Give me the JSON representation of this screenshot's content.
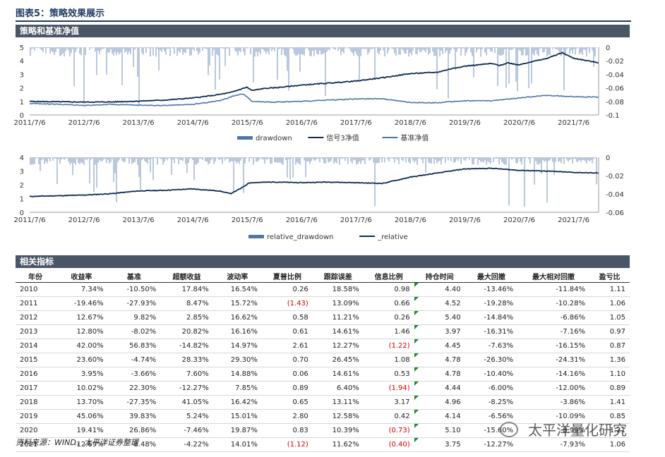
{
  "figure_title": "图表5：策略效果展示",
  "band_chart": "策略和基准净值",
  "band_table": "相关指标",
  "source": "资料来源：WIND，太平洋证券整理",
  "watermark": "太平洋量化研究",
  "colors": {
    "band": "#4a5566",
    "dark": "#0f2d52",
    "mid": "#4f77a6",
    "light": "#a9bad2",
    "neg": "#d00000",
    "green": "#1a8c2a"
  },
  "chart_data": [
    {
      "type": "line",
      "title": "策略和基准净值",
      "x_start": 2011.51,
      "x_end": 2021.97,
      "x_ticks": [
        "2011/7/6",
        "2012/7/6",
        "2013/7/6",
        "2014/7/6",
        "2015/7/6",
        "2016/7/6",
        "2017/7/6",
        "2018/7/6",
        "2019/7/6",
        "2020/7/6",
        "2021/7/6"
      ],
      "ylim_left": [
        0,
        5
      ],
      "yticks_left": [
        "0",
        "1",
        "2",
        "3",
        "4",
        "5"
      ],
      "ylim_right": [
        -0.1,
        0
      ],
      "yticks_right": [
        "0",
        "-0.02",
        "-0.04",
        "-0.06",
        "-0.08",
        "-0.1"
      ],
      "legend": [
        "drawdown",
        "信号3净值",
        "基准净值"
      ],
      "series": [
        {
          "name": "信号3净值",
          "axis": "left",
          "x": [
            2011.51,
            2012.5,
            2013.0,
            2013.5,
            2014.0,
            2014.5,
            2014.9,
            2015.2,
            2015.35,
            2015.5,
            2015.6,
            2015.8,
            2016.0,
            2016.5,
            2017.0,
            2017.5,
            2018.0,
            2018.5,
            2019.0,
            2019.3,
            2019.5,
            2020.0,
            2020.15,
            2020.3,
            2020.5,
            2020.7,
            2021.0,
            2021.1,
            2021.3,
            2021.5,
            2021.7,
            2021.97
          ],
          "y": [
            1.0,
            0.95,
            0.96,
            1.02,
            1.1,
            1.25,
            1.45,
            1.65,
            1.85,
            2.05,
            1.8,
            1.95,
            2.0,
            2.2,
            2.35,
            2.5,
            2.75,
            3.05,
            3.15,
            3.45,
            3.6,
            3.8,
            3.65,
            3.85,
            3.7,
            3.9,
            4.15,
            4.3,
            4.6,
            4.2,
            4.05,
            3.85
          ]
        },
        {
          "name": "基准净值",
          "axis": "left",
          "x": [
            2011.51,
            2012.0,
            2012.5,
            2013.0,
            2013.5,
            2014.0,
            2014.5,
            2015.0,
            2015.3,
            2015.45,
            2015.6,
            2016.0,
            2016.5,
            2017.0,
            2017.5,
            2018.0,
            2018.5,
            2019.0,
            2019.5,
            2020.0,
            2020.5,
            2021.0,
            2021.5,
            2021.97
          ],
          "y": [
            0.85,
            0.8,
            0.7,
            0.78,
            0.72,
            0.7,
            0.78,
            1.05,
            1.45,
            1.55,
            1.0,
            0.95,
            1.0,
            1.1,
            1.18,
            1.2,
            0.92,
            0.9,
            1.05,
            1.05,
            1.25,
            1.45,
            1.35,
            1.32
          ]
        }
      ]
    },
    {
      "type": "line",
      "title": "",
      "x_start": 2011.51,
      "x_end": 2021.97,
      "x_ticks": [
        "2011/7/6",
        "2012/7/6",
        "2013/7/6",
        "2014/7/6",
        "2015/7/6",
        "2016/7/6",
        "2017/7/6",
        "2018/7/6",
        "2019/7/6",
        "2020/7/6",
        "2021/7/6"
      ],
      "ylim_left": [
        0,
        4
      ],
      "yticks_left": [
        "0",
        "1",
        "2",
        "3",
        "4"
      ],
      "ylim_right": [
        -0.06,
        0
      ],
      "yticks_right": [
        "0",
        "-0.02",
        "-0.04",
        "-0.06"
      ],
      "legend": [
        "relative_drawdown",
        "_relative"
      ],
      "series": [
        {
          "name": "_relative",
          "axis": "left",
          "x": [
            2011.51,
            2012.5,
            2013.0,
            2013.5,
            2014.0,
            2014.5,
            2015.0,
            2015.2,
            2015.4,
            2015.55,
            2016.0,
            2016.5,
            2017.0,
            2017.5,
            2018.0,
            2018.5,
            2019.0,
            2019.5,
            2020.0,
            2020.5,
            2021.0,
            2021.5,
            2021.97
          ],
          "y": [
            1.15,
            1.25,
            1.35,
            1.55,
            1.6,
            1.7,
            1.55,
            1.35,
            1.75,
            2.15,
            2.2,
            2.15,
            2.2,
            2.15,
            2.1,
            2.55,
            2.85,
            3.15,
            3.2,
            3.05,
            3.0,
            2.9,
            2.85
          ]
        }
      ]
    }
  ],
  "table": {
    "headers": [
      "年份",
      "收益率",
      "基准",
      "超额收益",
      "波动率",
      "夏普比例",
      "跟踪误差",
      "信息比例",
      "持仓时间",
      "最大回撤",
      "最大相对回撤",
      "盈亏比"
    ],
    "rows": [
      [
        "2010",
        "7.34%",
        "-10.50%",
        "17.84%",
        "16.54%",
        "0.26",
        "18.58%",
        "0.98",
        "4.40",
        "-13.46%",
        "-11.84%",
        "1.11"
      ],
      [
        "2011",
        "-19.46%",
        "-27.93%",
        "8.47%",
        "15.72%",
        "(1.43)",
        "13.09%",
        "0.66",
        "4.52",
        "-19.28%",
        "-10.28%",
        "1.06"
      ],
      [
        "2012",
        "12.67%",
        "9.82%",
        "2.85%",
        "16.62%",
        "0.58",
        "11.21%",
        "0.26",
        "5.40",
        "-14.84%",
        "-6.86%",
        "1.05"
      ],
      [
        "2013",
        "12.80%",
        "-8.02%",
        "20.82%",
        "16.16%",
        "0.61",
        "14.61%",
        "1.46",
        "3.97",
        "-16.31%",
        "-7.16%",
        "0.97"
      ],
      [
        "2014",
        "42.00%",
        "56.83%",
        "-14.82%",
        "14.97%",
        "2.61",
        "12.27%",
        "(1.22)",
        "4.45",
        "-7.63%",
        "-16.15%",
        "0.87"
      ],
      [
        "2015",
        "23.60%",
        "-4.74%",
        "28.33%",
        "29.30%",
        "0.70",
        "26.45%",
        "1.08",
        "4.78",
        "-26.30%",
        "-24.31%",
        "1.36"
      ],
      [
        "2016",
        "3.95%",
        "-3.66%",
        "7.60%",
        "14.88%",
        "0.06",
        "14.61%",
        "0.53",
        "4.78",
        "-10.40%",
        "-14.16%",
        "1.10"
      ],
      [
        "2017",
        "10.02%",
        "22.30%",
        "-12.27%",
        "7.85%",
        "0.89",
        "6.40%",
        "(1.94)",
        "4.44",
        "-6.00%",
        "-12.00%",
        "0.89"
      ],
      [
        "2018",
        "13.70%",
        "-27.35%",
        "41.05%",
        "16.42%",
        "0.65",
        "13.11%",
        "3.17",
        "4.96",
        "-8.25%",
        "-3.86%",
        "1.41"
      ],
      [
        "2019",
        "45.06%",
        "39.83%",
        "5.24%",
        "15.01%",
        "2.80",
        "12.58%",
        "0.42",
        "4.14",
        "-6.56%",
        "-10.09%",
        "0.85"
      ],
      [
        "2020",
        "19.41%",
        "26.86%",
        "-7.46%",
        "19.87%",
        "0.83",
        "10.39%",
        "(0.73)",
        "5.10",
        "-15.60%",
        "-8.99%",
        "1.21"
      ],
      [
        "2021",
        "-12.69%",
        "-8.48%",
        "-4.22%",
        "14.01%",
        "(1.12)",
        "11.62%",
        "(0.40)",
        "3.75",
        "-12.27%",
        "-7.93%",
        "1.06"
      ]
    ]
  }
}
